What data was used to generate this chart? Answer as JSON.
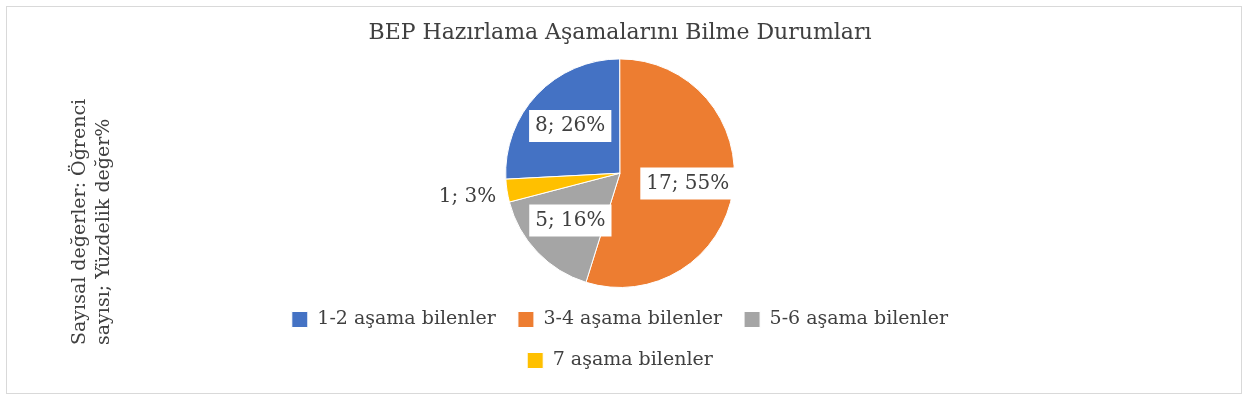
{
  "chart_data": {
    "type": "pie",
    "title": "BEP Hazırlama Aşamalarını Bilme Durumları",
    "ylabel": "Sayısal değerler: Öğrenci sayısı; Yüzdelik değer%",
    "categories": [
      "1-2 aşama bilenler",
      "3-4 aşama bilenler",
      "5-6 aşama bilenler",
      "7 aşama bilenler"
    ],
    "values": [
      8,
      17,
      5,
      1
    ],
    "colors": [
      "#4472c4",
      "#ed7d31",
      "#a5a5a5",
      "#ffc000"
    ],
    "value_labels": [
      "8; 26%",
      "17; 55%",
      "5; 16%",
      "1; 3%"
    ],
    "legend": "bottom"
  }
}
